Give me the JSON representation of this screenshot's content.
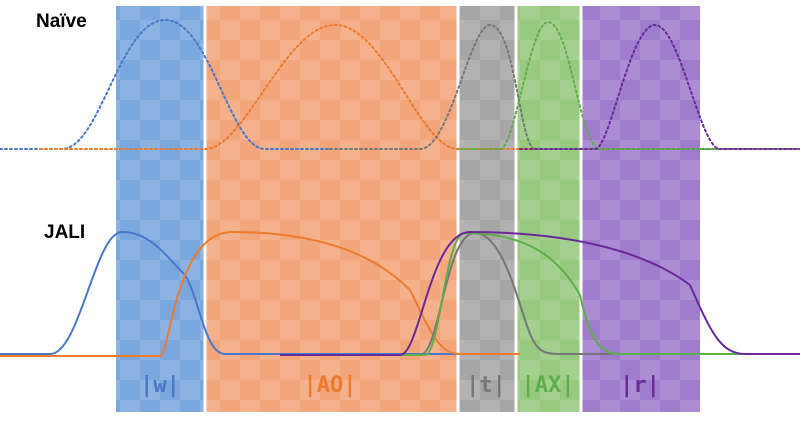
{
  "labels": {
    "naive": "Naïve",
    "jali": "JALI"
  },
  "phonemes": [
    {
      "id": "w",
      "label": "|w|",
      "color": "#4a78c8",
      "fill": "#7aa7de"
    },
    {
      "id": "AO",
      "label": "|AO|",
      "color": "#ec7b2e",
      "fill": "#f3a57b"
    },
    {
      "id": "t",
      "label": "|t|",
      "color": "#777777",
      "fill": "#a6a6a6"
    },
    {
      "id": "AX",
      "label": "|AX|",
      "color": "#5fae4c",
      "fill": "#97c97e"
    },
    {
      "id": "r",
      "label": "|r|",
      "color": "#6a2a9a",
      "fill": "#a07ccc"
    }
  ],
  "colors": {
    "background": "#ffffff",
    "checker": "#ffffff",
    "band_separator": "#ffffff"
  }
}
